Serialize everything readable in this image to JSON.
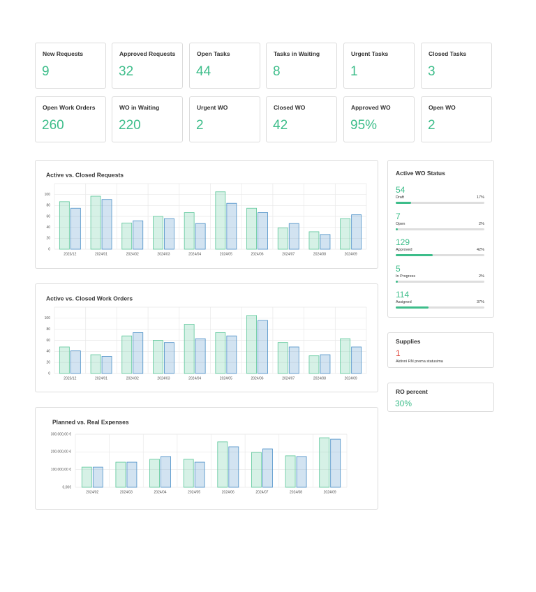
{
  "stats": [
    {
      "title": "New Requests",
      "value": "9"
    },
    {
      "title": "Approved Requests",
      "value": "32"
    },
    {
      "title": "Open Tasks",
      "value": "44"
    },
    {
      "title": "Tasks in Waiting",
      "value": "8"
    },
    {
      "title": "Urgent Tasks",
      "value": "1"
    },
    {
      "title": "Closed Tasks",
      "value": "3"
    },
    {
      "title": "Open Work Orders",
      "value": "260"
    },
    {
      "title": "WO in Waiting",
      "value": "220"
    },
    {
      "title": "Urgent WO",
      "value": "2"
    },
    {
      "title": "Closed WO",
      "value": "42"
    },
    {
      "title": "Approved WO",
      "value": "95%"
    },
    {
      "title": "Open WO",
      "value": "2"
    }
  ],
  "chart_data": [
    {
      "type": "bar",
      "title": "Active vs. Closed Requests",
      "categories": [
        "2023/12",
        "2024/01",
        "2024/02",
        "2024/03",
        "2024/04",
        "2024/05",
        "2024/06",
        "2024/07",
        "2024/08",
        "2024/09"
      ],
      "series": [
        {
          "color": "#5cc79a",
          "values": [
            87,
            97,
            48,
            60,
            67,
            105,
            75,
            39,
            32,
            56
          ]
        },
        {
          "color": "#4a8fc7",
          "values": [
            75,
            91,
            52,
            56,
            47,
            84,
            67,
            47,
            27,
            63
          ]
        }
      ],
      "ylim": [
        0,
        120
      ],
      "yticks": [
        0,
        20,
        40,
        60,
        80,
        100
      ],
      "grid": true
    },
    {
      "type": "bar",
      "title": "Active vs. Closed Work Orders",
      "categories": [
        "2023/12",
        "2024/01",
        "2024/02",
        "2024/03",
        "2024/04",
        "2024/05",
        "2024/06",
        "2024/07",
        "2024/08",
        "2024/09"
      ],
      "series": [
        {
          "color": "#5cc79a",
          "values": [
            48,
            34,
            68,
            60,
            89,
            74,
            105,
            56,
            32,
            63
          ]
        },
        {
          "color": "#4a8fc7",
          "values": [
            41,
            31,
            74,
            56,
            63,
            68,
            96,
            48,
            34,
            48
          ]
        }
      ],
      "ylim": [
        0,
        120
      ],
      "yticks": [
        0,
        20,
        40,
        60,
        80,
        100
      ],
      "grid": true
    },
    {
      "type": "bar",
      "title": "Planned vs. Real Expenses",
      "categories": [
        "2024/02",
        "2024/03",
        "2024/04",
        "2024/05",
        "2024/06",
        "2024/07",
        "2024/08",
        "2024/09"
      ],
      "series": [
        {
          "color": "#5cc79a",
          "values": [
            114000,
            142000,
            158000,
            158000,
            257000,
            197000,
            178000,
            280000
          ]
        },
        {
          "color": "#4a8fc7",
          "values": [
            114000,
            142000,
            174000,
            142000,
            229000,
            217000,
            174000,
            272000
          ]
        }
      ],
      "ylim": [
        0,
        300000
      ],
      "yticks": [
        {
          "value": 0,
          "label": "0,00€"
        },
        {
          "value": 100000,
          "label": "100.000,00 €"
        },
        {
          "value": 200000,
          "label": "200.000,00 €"
        },
        {
          "value": 300000,
          "label": "300.000,00 €"
        }
      ],
      "grid": true
    }
  ],
  "status_panel": {
    "title": "Active WO Status",
    "items": [
      {
        "count": "54",
        "label": "Draft",
        "percent": 17,
        "percent_label": "17%"
      },
      {
        "count": "7",
        "label": "Open",
        "percent": 2,
        "percent_label": "2%"
      },
      {
        "count": "129",
        "label": "Approved",
        "percent": 42,
        "percent_label": "42%"
      },
      {
        "count": "5",
        "label": "In Progress",
        "percent": 2,
        "percent_label": "2%"
      },
      {
        "count": "114",
        "label": "Assigned",
        "percent": 37,
        "percent_label": "37%"
      }
    ]
  },
  "supplies": {
    "title": "Supplies",
    "value": "1",
    "caption": "Aktivni RN prema statusima"
  },
  "ro_percent": {
    "title": "RO percent",
    "value": "30%"
  }
}
